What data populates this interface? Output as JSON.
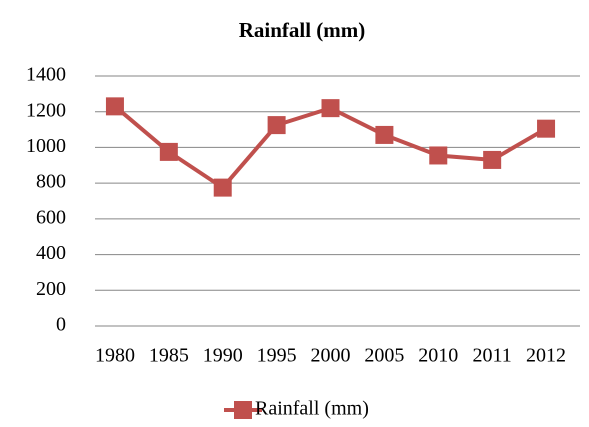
{
  "chart_data": {
    "type": "line",
    "title": "Rainfall (mm)",
    "categories": [
      "1980",
      "1985",
      "1990",
      "1995",
      "2000",
      "2005",
      "2010",
      "2011",
      "2012"
    ],
    "series": [
      {
        "name": "Rainfall (mm)",
        "color": "#c0504d",
        "values": [
          1230,
          975,
          775,
          1125,
          1220,
          1070,
          955,
          930,
          1105
        ]
      }
    ],
    "ylim": [
      0,
      1400
    ],
    "yticks": [
      0,
      200,
      400,
      600,
      800,
      1000,
      1200,
      1400
    ],
    "grid": true,
    "legend": "bottom"
  }
}
